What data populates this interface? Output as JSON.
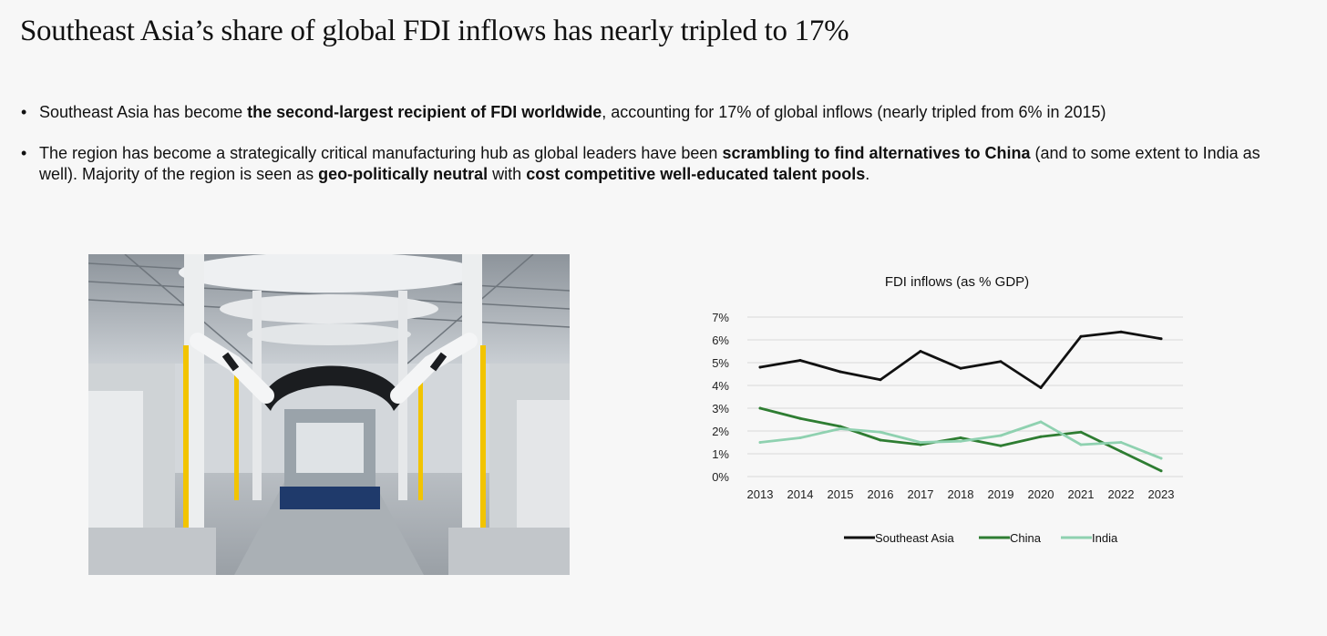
{
  "page": {
    "title": "Southeast Asia’s share of global FDI inflows has nearly tripled to 17%",
    "bullets": [
      {
        "parts": [
          {
            "text": "Southeast Asia has become ",
            "bold": false
          },
          {
            "text": "the second-largest recipient of FDI worldwide",
            "bold": true
          },
          {
            "text": ", accounting for 17% of global inflows (nearly tripled from 6% in 2015)",
            "bold": false
          }
        ]
      },
      {
        "parts": [
          {
            "text": "The region has become a strategically critical manufacturing hub as global leaders have been ",
            "bold": false
          },
          {
            "text": "scrambling to find alternatives to China",
            "bold": true
          },
          {
            "text": " (and to some extent to India as well). Majority of the region is seen as ",
            "bold": false
          },
          {
            "text": "geo-politically neutral",
            "bold": true
          },
          {
            "text": " with ",
            "bold": false
          },
          {
            "text": "cost competitive well-educated talent pools",
            "bold": true
          },
          {
            "text": ".",
            "bold": false
          }
        ]
      }
    ]
  },
  "chart_data": {
    "type": "line",
    "title": "FDI inflows (as % GDP)",
    "xlabel": "",
    "ylabel": "",
    "categories": [
      "2013",
      "2014",
      "2015",
      "2016",
      "2017",
      "2018",
      "2019",
      "2020",
      "2021",
      "2022",
      "2023"
    ],
    "ylim": [
      0,
      7
    ],
    "yticks": [
      0,
      1,
      2,
      3,
      4,
      5,
      6,
      7
    ],
    "ytick_labels": [
      "0%",
      "1%",
      "2%",
      "3%",
      "4%",
      "5%",
      "6%",
      "7%"
    ],
    "grid": "horizontal",
    "legend_position": "bottom",
    "series": [
      {
        "name": "Southeast Asia",
        "color": "#111111",
        "values": [
          4.8,
          5.1,
          4.6,
          4.25,
          5.5,
          4.75,
          5.05,
          3.9,
          6.15,
          6.35,
          6.05
        ]
      },
      {
        "name": "China",
        "color": "#2e7d32",
        "values": [
          3.0,
          2.55,
          2.2,
          1.6,
          1.4,
          1.7,
          1.35,
          1.75,
          1.95,
          1.1,
          0.25
        ]
      },
      {
        "name": "India",
        "color": "#8fd1b0",
        "values": [
          1.5,
          1.7,
          2.1,
          1.95,
          1.5,
          1.55,
          1.8,
          2.4,
          1.4,
          1.5,
          0.8
        ]
      }
    ]
  }
}
